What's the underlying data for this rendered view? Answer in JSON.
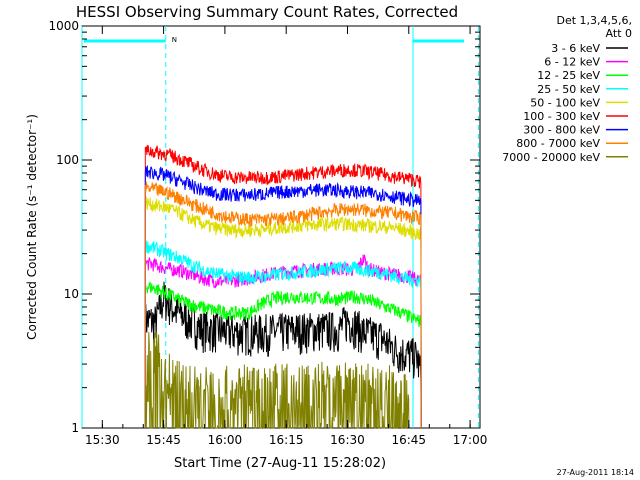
{
  "chart_data": {
    "type": "line",
    "title": "HESSI Observing Summary Count Rates, Corrected",
    "xlabel": "Start Time (27-Aug-11 15:28:02)",
    "ylabel": "Corrected Count Rate (s⁻¹ detector⁻¹)",
    "yscale": "log",
    "xlim": [
      -3.0,
      90.0
    ],
    "ylim": [
      1,
      1000
    ],
    "x_unit": "minutes after 15:28:02",
    "x_ticks": [
      {
        "t": 1.97,
        "label": "15:30"
      },
      {
        "t": 16.97,
        "label": "15:45"
      },
      {
        "t": 31.97,
        "label": "16:00"
      },
      {
        "t": 46.97,
        "label": "16:15"
      },
      {
        "t": 61.97,
        "label": "16:30"
      },
      {
        "t": 76.97,
        "label": "16:45"
      },
      {
        "t": 91.97,
        "label": "17:00"
      }
    ],
    "y_ticks": [
      {
        "v": 1,
        "label": "1"
      },
      {
        "v": 10,
        "label": "10"
      },
      {
        "v": 100,
        "label": "100"
      },
      {
        "v": 1000,
        "label": "1000"
      }
    ],
    "legend": {
      "header_line1": "Det 1,3,4,5,6,",
      "header_line2": "Att 0",
      "position": "right-outside"
    },
    "series": [
      {
        "name": "3 - 6 keV",
        "color": "#000000",
        "points": [
          [
            12.5,
            6.5
          ],
          [
            15,
            6.2
          ],
          [
            17,
            9.5
          ],
          [
            20,
            7.5
          ],
          [
            23,
            6.5
          ],
          [
            26,
            5.6
          ],
          [
            30,
            5.4
          ],
          [
            35,
            5.2
          ],
          [
            40,
            5.2
          ],
          [
            45,
            5.3
          ],
          [
            50,
            5.4
          ],
          [
            55,
            5.5
          ],
          [
            60,
            5.5
          ],
          [
            62,
            6.5
          ],
          [
            64,
            5.8
          ],
          [
            66,
            5.2
          ],
          [
            70,
            4.8
          ],
          [
            74,
            3.8
          ],
          [
            76.5,
            3.6
          ],
          [
            79,
            3.4
          ],
          [
            80,
            2.5
          ]
        ]
      },
      {
        "name": "6 - 12 keV",
        "color": "#ff00ff",
        "points": [
          [
            12.5,
            17
          ],
          [
            15,
            16.5
          ],
          [
            18,
            15.5
          ],
          [
            21,
            15
          ],
          [
            24,
            14
          ],
          [
            27,
            13
          ],
          [
            30,
            12.5
          ],
          [
            34,
            12.6
          ],
          [
            38,
            13.2
          ],
          [
            42,
            14
          ],
          [
            46,
            14.6
          ],
          [
            50,
            15
          ],
          [
            54,
            15.3
          ],
          [
            58,
            15.5
          ],
          [
            61,
            15.5
          ],
          [
            64,
            15.2
          ],
          [
            66,
            18.5
          ],
          [
            67,
            15.5
          ],
          [
            70,
            14.5
          ],
          [
            74,
            14
          ],
          [
            77,
            13.5
          ],
          [
            80,
            12.5
          ]
        ]
      },
      {
        "name": "12 - 25 keV",
        "color": "#00ff00",
        "points": [
          [
            12.5,
            11.5
          ],
          [
            15,
            11
          ],
          [
            18,
            10
          ],
          [
            21,
            9
          ],
          [
            24,
            8.3
          ],
          [
            27,
            7.9
          ],
          [
            30,
            7.5
          ],
          [
            34,
            7.2
          ],
          [
            38,
            7.3
          ],
          [
            41,
            8.5
          ],
          [
            44,
            9.3
          ],
          [
            48,
            9.6
          ],
          [
            52,
            9.4
          ],
          [
            56,
            9.3
          ],
          [
            60,
            9.2
          ],
          [
            64,
            9.6
          ],
          [
            67,
            9.1
          ],
          [
            70,
            8.3
          ],
          [
            74,
            7.5
          ],
          [
            77,
            6.8
          ],
          [
            80,
            6.2
          ]
        ]
      },
      {
        "name": "25 - 50 keV",
        "color": "#00ffff",
        "points": [
          [
            12.5,
            23
          ],
          [
            15,
            22
          ],
          [
            18,
            20
          ],
          [
            21,
            18.5
          ],
          [
            24,
            16.5
          ],
          [
            27,
            15
          ],
          [
            30,
            14.2
          ],
          [
            34,
            13.5
          ],
          [
            38,
            13.3
          ],
          [
            42,
            13.6
          ],
          [
            46,
            14.2
          ],
          [
            50,
            14.6
          ],
          [
            54,
            15
          ],
          [
            58,
            15.5
          ],
          [
            61,
            15.8
          ],
          [
            64,
            15.5
          ],
          [
            67,
            15
          ],
          [
            70,
            14.5
          ],
          [
            74,
            13.5
          ],
          [
            77,
            13
          ],
          [
            80,
            12.5
          ]
        ]
      },
      {
        "name": "50 - 100 keV",
        "color": "#dddd00",
        "points": [
          [
            12.5,
            48
          ],
          [
            15,
            46
          ],
          [
            18,
            44
          ],
          [
            21,
            40
          ],
          [
            24,
            36
          ],
          [
            27,
            33
          ],
          [
            30,
            31
          ],
          [
            34,
            30
          ],
          [
            38,
            30
          ],
          [
            42,
            30.5
          ],
          [
            46,
            31.5
          ],
          [
            50,
            32.5
          ],
          [
            54,
            33
          ],
          [
            58,
            33.5
          ],
          [
            61,
            33.5
          ],
          [
            64,
            33
          ],
          [
            67,
            32.5
          ],
          [
            70,
            32
          ],
          [
            74,
            31
          ],
          [
            77,
            29.5
          ],
          [
            80,
            28
          ]
        ]
      },
      {
        "name": "100 - 300 keV",
        "color": "#ff0000",
        "points": [
          [
            12.5,
            118
          ],
          [
            15,
            115
          ],
          [
            18,
            110
          ],
          [
            21,
            102
          ],
          [
            24,
            92
          ],
          [
            27,
            84
          ],
          [
            30,
            78
          ],
          [
            33,
            75
          ],
          [
            36,
            74
          ],
          [
            40,
            74
          ],
          [
            44,
            75
          ],
          [
            48,
            77
          ],
          [
            52,
            80
          ],
          [
            56,
            82
          ],
          [
            60,
            84
          ],
          [
            63,
            85
          ],
          [
            66,
            83
          ],
          [
            69,
            80
          ],
          [
            72,
            77
          ],
          [
            75,
            74
          ],
          [
            78,
            72
          ],
          [
            80,
            68
          ]
        ]
      },
      {
        "name": "300 - 800 keV",
        "color": "#0000ff",
        "points": [
          [
            12.5,
            82
          ],
          [
            15,
            80
          ],
          [
            18,
            76
          ],
          [
            21,
            70
          ],
          [
            24,
            64
          ],
          [
            27,
            59
          ],
          [
            30,
            56
          ],
          [
            34,
            55
          ],
          [
            38,
            55
          ],
          [
            42,
            56
          ],
          [
            46,
            58
          ],
          [
            50,
            59
          ],
          [
            54,
            60
          ],
          [
            58,
            60
          ],
          [
            61,
            59
          ],
          [
            64,
            58
          ],
          [
            67,
            57
          ],
          [
            70,
            56
          ],
          [
            74,
            53
          ],
          [
            77,
            51
          ],
          [
            80,
            49
          ]
        ]
      },
      {
        "name": "800 - 7000 keV",
        "color": "#ff7f00",
        "points": [
          [
            12.5,
            62
          ],
          [
            15,
            60
          ],
          [
            18,
            57
          ],
          [
            21,
            52
          ],
          [
            24,
            47
          ],
          [
            27,
            43
          ],
          [
            30,
            40
          ],
          [
            34,
            37
          ],
          [
            38,
            36
          ],
          [
            42,
            36
          ],
          [
            46,
            36.5
          ],
          [
            50,
            38
          ],
          [
            54,
            40
          ],
          [
            58,
            42
          ],
          [
            61,
            43
          ],
          [
            64,
            43
          ],
          [
            67,
            42
          ],
          [
            70,
            41
          ],
          [
            74,
            40
          ],
          [
            77,
            38
          ],
          [
            80,
            37
          ]
        ]
      },
      {
        "name": "7000 - 20000 keV",
        "color": "#808000",
        "points": [
          [
            12.5,
            3.8
          ],
          [
            14,
            3.4
          ],
          [
            16,
            3.2
          ],
          [
            17.5,
            2.4
          ],
          [
            20,
            2.1
          ],
          [
            25,
            1.9
          ],
          [
            30,
            1.8
          ],
          [
            40,
            1.9
          ],
          [
            50,
            1.9
          ],
          [
            60,
            2
          ],
          [
            68,
            1.9
          ],
          [
            72,
            1.9
          ],
          [
            76,
            1.8
          ],
          [
            77,
            1.3
          ]
        ]
      }
    ],
    "annotations": {
      "segment_bars_top": "attenuator/segment markers",
      "n_label": "N"
    },
    "vlines_solid": [
      -3.0,
      78.0
    ],
    "vlines_dashed": [
      17.5,
      94.0
    ],
    "footer": "27-Aug-2011 18:14"
  }
}
